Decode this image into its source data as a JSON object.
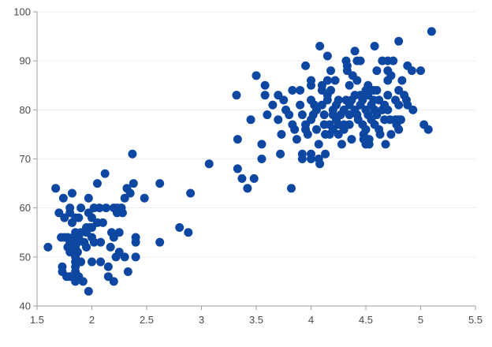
{
  "chart_data": {
    "type": "scatter",
    "title": "",
    "xlabel": "",
    "ylabel": "",
    "xlim": [
      1.5,
      5.5
    ],
    "ylim": [
      40,
      100
    ],
    "x_ticks": [
      "1.5",
      "2",
      "2.5",
      "3",
      "3.5",
      "4",
      "4.5",
      "5",
      "5.5"
    ],
    "y_ticks": [
      "40",
      "50",
      "60",
      "70",
      "80",
      "90",
      "100"
    ],
    "grid": "horizontal",
    "marker_color": "#0d47a1",
    "points": [
      [
        1.6,
        52
      ],
      [
        1.67,
        64
      ],
      [
        1.7,
        59
      ],
      [
        1.72,
        54
      ],
      [
        1.73,
        48
      ],
      [
        1.73,
        47
      ],
      [
        1.74,
        62
      ],
      [
        1.75,
        58
      ],
      [
        1.75,
        54
      ],
      [
        1.77,
        46
      ],
      [
        1.78,
        52
      ],
      [
        1.78,
        54
      ],
      [
        1.8,
        60
      ],
      [
        1.8,
        59
      ],
      [
        1.8,
        53
      ],
      [
        1.8,
        51
      ],
      [
        1.8,
        46
      ],
      [
        1.82,
        63
      ],
      [
        1.82,
        57
      ],
      [
        1.83,
        54
      ],
      [
        1.83,
        46
      ],
      [
        1.85,
        58
      ],
      [
        1.85,
        55
      ],
      [
        1.85,
        52
      ],
      [
        1.85,
        50
      ],
      [
        1.85,
        49
      ],
      [
        1.85,
        48
      ],
      [
        1.85,
        47
      ],
      [
        1.85,
        45
      ],
      [
        1.87,
        53
      ],
      [
        1.87,
        51
      ],
      [
        1.88,
        54
      ],
      [
        1.88,
        58
      ],
      [
        1.88,
        46
      ],
      [
        1.9,
        60
      ],
      [
        1.9,
        55
      ],
      [
        1.9,
        49
      ],
      [
        1.92,
        45
      ],
      [
        1.93,
        53
      ],
      [
        1.95,
        56
      ],
      [
        1.95,
        55
      ],
      [
        1.95,
        52
      ],
      [
        1.97,
        62
      ],
      [
        1.97,
        59
      ],
      [
        1.97,
        43
      ],
      [
        1.98,
        56
      ],
      [
        2.0,
        58
      ],
      [
        2.0,
        56
      ],
      [
        2.0,
        54
      ],
      [
        2.0,
        49
      ],
      [
        2.02,
        60
      ],
      [
        2.02,
        53
      ],
      [
        2.05,
        57
      ],
      [
        2.05,
        65
      ],
      [
        2.07,
        60
      ],
      [
        2.08,
        53
      ],
      [
        2.08,
        49
      ],
      [
        2.1,
        57
      ],
      [
        2.12,
        67
      ],
      [
        2.13,
        60
      ],
      [
        2.15,
        46
      ],
      [
        2.15,
        48
      ],
      [
        2.17,
        52
      ],
      [
        2.18,
        55
      ],
      [
        2.2,
        60
      ],
      [
        2.2,
        54
      ],
      [
        2.2,
        45
      ],
      [
        2.22,
        50
      ],
      [
        2.23,
        59
      ],
      [
        2.23,
        60
      ],
      [
        2.25,
        55
      ],
      [
        2.25,
        51
      ],
      [
        2.27,
        60
      ],
      [
        2.28,
        59
      ],
      [
        2.3,
        62
      ],
      [
        2.3,
        50
      ],
      [
        2.32,
        64
      ],
      [
        2.33,
        47
      ],
      [
        2.35,
        63
      ],
      [
        2.37,
        71
      ],
      [
        2.38,
        65
      ],
      [
        2.4,
        54
      ],
      [
        2.4,
        53
      ],
      [
        2.4,
        50
      ],
      [
        2.48,
        62
      ],
      [
        2.62,
        65
      ],
      [
        2.62,
        53
      ],
      [
        2.8,
        56
      ],
      [
        2.88,
        55
      ],
      [
        2.9,
        63
      ],
      [
        3.07,
        69
      ],
      [
        3.32,
        83
      ],
      [
        3.33,
        74
      ],
      [
        3.33,
        68
      ],
      [
        3.37,
        66
      ],
      [
        3.42,
        64
      ],
      [
        3.45,
        78
      ],
      [
        3.48,
        66
      ],
      [
        3.5,
        87
      ],
      [
        3.55,
        73
      ],
      [
        3.55,
        70
      ],
      [
        3.58,
        85
      ],
      [
        3.58,
        83
      ],
      [
        3.6,
        79
      ],
      [
        3.65,
        81
      ],
      [
        3.7,
        83
      ],
      [
        3.7,
        78
      ],
      [
        3.72,
        71
      ],
      [
        3.73,
        75
      ],
      [
        3.75,
        82
      ],
      [
        3.77,
        80
      ],
      [
        3.8,
        79
      ],
      [
        3.82,
        64
      ],
      [
        3.83,
        77
      ],
      [
        3.83,
        84
      ],
      [
        3.85,
        76
      ],
      [
        3.87,
        74
      ],
      [
        3.9,
        84
      ],
      [
        3.9,
        81
      ],
      [
        3.92,
        79
      ],
      [
        3.92,
        71
      ],
      [
        3.92,
        70
      ],
      [
        3.95,
        89
      ],
      [
        3.95,
        77
      ],
      [
        3.95,
        76
      ],
      [
        3.97,
        75
      ],
      [
        4.0,
        86
      ],
      [
        4.0,
        85
      ],
      [
        4.0,
        82
      ],
      [
        4.0,
        78
      ],
      [
        4.0,
        71
      ],
      [
        4.0,
        70
      ],
      [
        4.02,
        79
      ],
      [
        4.03,
        81
      ],
      [
        4.05,
        80
      ],
      [
        4.05,
        76
      ],
      [
        4.07,
        73
      ],
      [
        4.07,
        70
      ],
      [
        4.08,
        69
      ],
      [
        4.08,
        93
      ],
      [
        4.1,
        85
      ],
      [
        4.1,
        84
      ],
      [
        4.1,
        81
      ],
      [
        4.12,
        79
      ],
      [
        4.12,
        77
      ],
      [
        4.13,
        75
      ],
      [
        4.13,
        71
      ],
      [
        4.15,
        86
      ],
      [
        4.15,
        83
      ],
      [
        4.15,
        82
      ],
      [
        4.15,
        91
      ],
      [
        4.17,
        77
      ],
      [
        4.17,
        75
      ],
      [
        4.18,
        88
      ],
      [
        4.18,
        84
      ],
      [
        4.2,
        80
      ],
      [
        4.2,
        79
      ],
      [
        4.2,
        76
      ],
      [
        4.22,
        86
      ],
      [
        4.23,
        81
      ],
      [
        4.23,
        78
      ],
      [
        4.25,
        82
      ],
      [
        4.25,
        77
      ],
      [
        4.25,
        75
      ],
      [
        4.27,
        79
      ],
      [
        4.28,
        73
      ],
      [
        4.3,
        80
      ],
      [
        4.3,
        77
      ],
      [
        4.3,
        76
      ],
      [
        4.32,
        82
      ],
      [
        4.32,
        90
      ],
      [
        4.33,
        89
      ],
      [
        4.33,
        88
      ],
      [
        4.35,
        85
      ],
      [
        4.35,
        81
      ],
      [
        4.35,
        79
      ],
      [
        4.35,
        77
      ],
      [
        4.37,
        82
      ],
      [
        4.37,
        74
      ],
      [
        4.38,
        87
      ],
      [
        4.4,
        83
      ],
      [
        4.4,
        80
      ],
      [
        4.4,
        92
      ],
      [
        4.42,
        90
      ],
      [
        4.42,
        86
      ],
      [
        4.42,
        79
      ],
      [
        4.43,
        78
      ],
      [
        4.45,
        83
      ],
      [
        4.45,
        81
      ],
      [
        4.45,
        90
      ],
      [
        4.47,
        82
      ],
      [
        4.47,
        77
      ],
      [
        4.48,
        75
      ],
      [
        4.48,
        74
      ],
      [
        4.5,
        84
      ],
      [
        4.5,
        80
      ],
      [
        4.5,
        76
      ],
      [
        4.5,
        73
      ],
      [
        4.52,
        85
      ],
      [
        4.52,
        83
      ],
      [
        4.52,
        79
      ],
      [
        4.53,
        74
      ],
      [
        4.53,
        73
      ],
      [
        4.55,
        81
      ],
      [
        4.55,
        78
      ],
      [
        4.57,
        84
      ],
      [
        4.57,
        82
      ],
      [
        4.58,
        80
      ],
      [
        4.58,
        77
      ],
      [
        4.58,
        93
      ],
      [
        4.6,
        88
      ],
      [
        4.6,
        84
      ],
      [
        4.6,
        79
      ],
      [
        4.62,
        82
      ],
      [
        4.62,
        76
      ],
      [
        4.63,
        75
      ],
      [
        4.65,
        80
      ],
      [
        4.65,
        90
      ],
      [
        4.67,
        81
      ],
      [
        4.67,
        78
      ],
      [
        4.68,
        73
      ],
      [
        4.7,
        88
      ],
      [
        4.7,
        86
      ],
      [
        4.7,
        83
      ],
      [
        4.7,
        80
      ],
      [
        4.7,
        90
      ],
      [
        4.72,
        78
      ],
      [
        4.73,
        87
      ],
      [
        4.73,
        75
      ],
      [
        4.75,
        90
      ],
      [
        4.77,
        82
      ],
      [
        4.77,
        78
      ],
      [
        4.78,
        77
      ],
      [
        4.8,
        94
      ],
      [
        4.8,
        84
      ],
      [
        4.8,
        81
      ],
      [
        4.8,
        78
      ],
      [
        4.8,
        76
      ],
      [
        4.82,
        78
      ],
      [
        4.83,
        86
      ],
      [
        4.85,
        83
      ],
      [
        4.87,
        82
      ],
      [
        4.88,
        89
      ],
      [
        4.88,
        81
      ],
      [
        4.92,
        88
      ],
      [
        4.93,
        80
      ],
      [
        5.0,
        88
      ],
      [
        5.03,
        77
      ],
      [
        5.07,
        76
      ],
      [
        5.1,
        96
      ]
    ]
  }
}
